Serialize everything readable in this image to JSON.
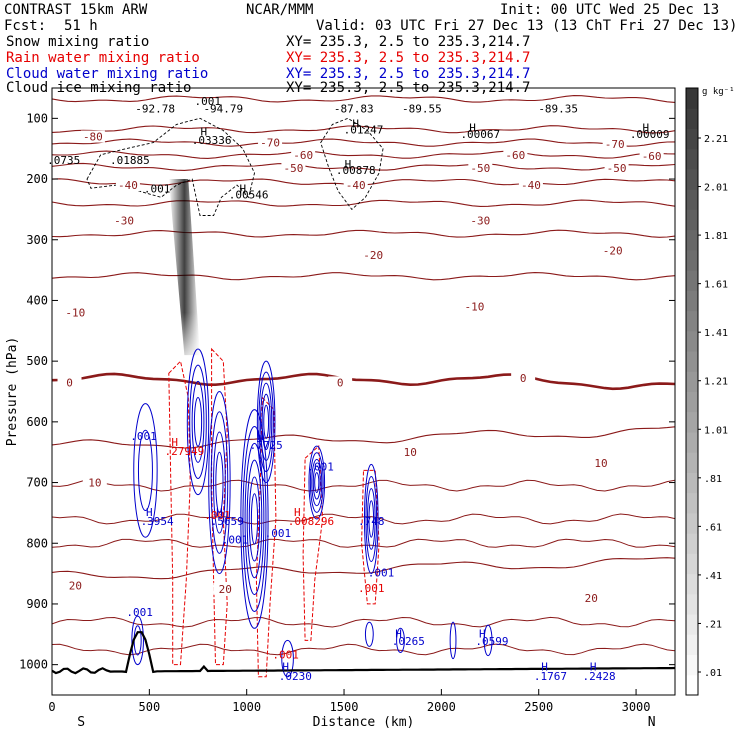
{
  "header": {
    "model": "CONTRAST 15km ARW",
    "org": "NCAR/MMM",
    "init": "Init: 00 UTC Wed 25 Dec 13",
    "fcst_label": "Fcst:",
    "fcst_value": "51 h",
    "valid": "Valid: 03 UTC Fri 27 Dec 13 (13 ChT Fri 27 Dec 13)"
  },
  "fields": [
    {
      "name": "Snow mixing ratio",
      "xy": "XY= 235.3, 2.5 to 235.3,214.7",
      "color": "#000000"
    },
    {
      "name": "Rain water mixing ratio",
      "xy": "XY= 235.3, 2.5 to 235.3,214.7",
      "color": "#e60000"
    },
    {
      "name": "Cloud water mixing ratio",
      "xy": "XY= 235.3, 2.5 to 235.3,214.7",
      "color": "#0000cc"
    },
    {
      "name": "Cloud ice mixing ratio",
      "xy": "XY= 235.3, 2.5 to 235.3,214.7",
      "color": "#000000"
    }
  ],
  "colorbar": {
    "unit": "g kg⁻¹",
    "labels": [
      "2.21",
      "2.01",
      "1.81",
      "1.61",
      "1.41",
      "1.21",
      "1.01",
      ".81",
      ".61",
      ".41",
      ".21",
      ".01"
    ]
  },
  "chart_data": {
    "type": "cross-section",
    "xlabel": "Distance (km)",
    "ylabel": "Pressure (hPa)",
    "xlim": [
      0,
      3200
    ],
    "ylim": [
      1050,
      50
    ],
    "x_ticks": [
      0,
      500,
      1000,
      1500,
      2000,
      2500,
      3000
    ],
    "y_ticks": [
      100,
      200,
      300,
      400,
      500,
      600,
      700,
      800,
      900,
      1000
    ],
    "x_end_labels": {
      "left": "S",
      "right": "N"
    },
    "temperature_contours": [
      {
        "label": "-80",
        "x": 210,
        "p": 130
      },
      {
        "label": "-70",
        "x": 1120,
        "p": 140
      },
      {
        "label": "-70",
        "x": 2890,
        "p": 142
      },
      {
        "label": "-60",
        "x": 1290,
        "p": 160
      },
      {
        "label": "-60",
        "x": 2380,
        "p": 160
      },
      {
        "label": "-60",
        "x": 3080,
        "p": 162
      },
      {
        "label": "-50",
        "x": 1240,
        "p": 182
      },
      {
        "label": "-50",
        "x": 2200,
        "p": 182
      },
      {
        "label": "-50",
        "x": 2900,
        "p": 182
      },
      {
        "label": "-40",
        "x": 390,
        "p": 210
      },
      {
        "label": "-40",
        "x": 1560,
        "p": 210
      },
      {
        "label": "-40",
        "x": 2460,
        "p": 210
      },
      {
        "label": "-30",
        "x": 370,
        "p": 268
      },
      {
        "label": "-30",
        "x": 2200,
        "p": 268
      },
      {
        "label": "-20",
        "x": 1650,
        "p": 325
      },
      {
        "label": "-20",
        "x": 2880,
        "p": 318
      },
      {
        "label": "-10",
        "x": 120,
        "p": 420
      },
      {
        "label": "-10",
        "x": 2170,
        "p": 410
      },
      {
        "label": "0",
        "x": 90,
        "p": 535
      },
      {
        "label": "0",
        "x": 1480,
        "p": 535
      },
      {
        "label": "0",
        "x": 2420,
        "p": 528
      },
      {
        "label": "10",
        "x": 220,
        "p": 700
      },
      {
        "label": "10",
        "x": 1840,
        "p": 650
      },
      {
        "label": "10",
        "x": 2820,
        "p": 668
      },
      {
        "label": "20",
        "x": 120,
        "p": 870
      },
      {
        "label": "20",
        "x": 890,
        "p": 875
      },
      {
        "label": "20",
        "x": 2770,
        "p": 890
      }
    ],
    "snow_ice_labels": [
      {
        "text": ".001",
        "x": 800,
        "p": 78
      },
      {
        "text": "-92.78",
        "x": 530,
        "p": 90
      },
      {
        "text": "-94.79",
        "x": 880,
        "p": 90
      },
      {
        "text": "-87.83",
        "x": 1550,
        "p": 90
      },
      {
        "text": "-89.55",
        "x": 1900,
        "p": 90
      },
      {
        "text": "-89.35",
        "x": 2600,
        "p": 90
      },
      {
        "text": "H",
        "x": 780,
        "p": 128
      },
      {
        "text": ".03336",
        "x": 820,
        "p": 142
      },
      {
        "text": "H",
        "x": 1560,
        "p": 115
      },
      {
        "text": ".01247",
        "x": 1600,
        "p": 125
      },
      {
        "text": "H",
        "x": 2160,
        "p": 122
      },
      {
        "text": ".00067",
        "x": 2200,
        "p": 132
      },
      {
        "text": "H",
        "x": 3050,
        "p": 122
      },
      {
        "text": ".00009",
        "x": 3070,
        "p": 132
      },
      {
        "text": ".0735",
        "x": 60,
        "p": 175
      },
      {
        "text": ".01885",
        "x": 400,
        "p": 175
      },
      {
        "text": "H",
        "x": 1520,
        "p": 182
      },
      {
        "text": ".00878",
        "x": 1560,
        "p": 192
      },
      {
        "text": "H",
        "x": 980,
        "p": 222
      },
      {
        "text": ".00546",
        "x": 1010,
        "p": 232
      },
      {
        "text": ".001",
        "x": 540,
        "p": 222
      }
    ],
    "rain_labels": [
      {
        "text": "H",
        "x": 630,
        "p": 640
      },
      {
        "text": ".27949",
        "x": 680,
        "p": 655
      },
      {
        "text": "H",
        "x": 1260,
        "p": 755
      },
      {
        "text": ".008296",
        "x": 1330,
        "p": 770
      },
      {
        "text": ".001",
        "x": 850,
        "p": 760
      },
      {
        "text": ".001",
        "x": 1200,
        "p": 990
      },
      {
        "text": ".001",
        "x": 1640,
        "p": 880
      }
    ],
    "cloud_water_labels": [
      {
        "text": ".001",
        "x": 470,
        "p": 630
      },
      {
        "text": "H",
        "x": 1070,
        "p": 630
      },
      {
        "text": ".7725",
        "x": 1100,
        "p": 645
      },
      {
        "text": ".001",
        "x": 1380,
        "p": 680
      },
      {
        "text": "H",
        "x": 500,
        "p": 755
      },
      {
        "text": ".3954",
        "x": 540,
        "p": 770
      },
      {
        "text": "H",
        "x": 860,
        "p": 755
      },
      {
        "text": ".5659",
        "x": 900,
        "p": 770
      },
      {
        "text": ".001",
        "x": 940,
        "p": 800
      },
      {
        "text": ".001",
        "x": 1160,
        "p": 790
      },
      {
        "text": ".748",
        "x": 1640,
        "p": 770
      },
      {
        "text": ".001",
        "x": 1690,
        "p": 855
      },
      {
        "text": ".001",
        "x": 450,
        "p": 920
      },
      {
        "text": "H",
        "x": 1780,
        "p": 955
      },
      {
        "text": ".0265",
        "x": 1830,
        "p": 968
      },
      {
        "text": "H",
        "x": 2210,
        "p": 955
      },
      {
        "text": ".0599",
        "x": 2260,
        "p": 968
      },
      {
        "text": "H",
        "x": 1200,
        "p": 1010
      },
      {
        "text": ".0230",
        "x": 1250,
        "p": 1025
      },
      {
        "text": "H",
        "x": 2530,
        "p": 1010
      },
      {
        "text": ".1767",
        "x": 2560,
        "p": 1025
      },
      {
        "text": "H",
        "x": 2780,
        "p": 1010
      },
      {
        "text": ".2428",
        "x": 2810,
        "p": 1025
      }
    ]
  }
}
